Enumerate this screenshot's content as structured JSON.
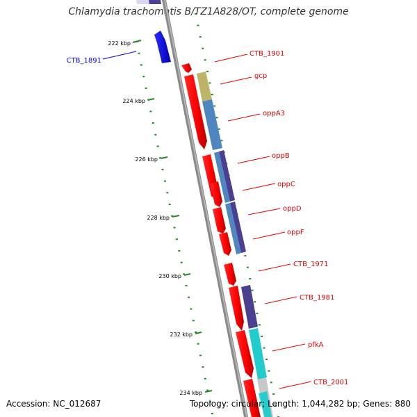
{
  "title": "Chlamydia trachomatis B/TZ1A828/OT, complete genome",
  "accession": "Accession: NC_012687",
  "summary": "Topology: circular; Length: 1,044,282 bp; Genes: 880",
  "ticks": [
    {
      "label": "222 kbp"
    },
    {
      "label": "224 kbp"
    },
    {
      "label": "226 kbp"
    },
    {
      "label": "228 kbp"
    },
    {
      "label": "230 kbp"
    },
    {
      "label": "232 kbp"
    },
    {
      "label": "234 kbp"
    }
  ],
  "genes": [
    {
      "name": "CTB_1891",
      "strand": "-",
      "color": "#0000ee"
    },
    {
      "name": "CTB_1901",
      "strand": "+",
      "color": "#dd0000"
    },
    {
      "name": "gcp",
      "strand": "+",
      "color": "#dd0000"
    },
    {
      "name": "oppA3",
      "strand": "+",
      "color": "#dd0000"
    },
    {
      "name": "oppB",
      "strand": "+",
      "color": "#dd0000"
    },
    {
      "name": "oppC",
      "strand": "+",
      "color": "#dd0000"
    },
    {
      "name": "oppD",
      "strand": "+",
      "color": "#dd0000"
    },
    {
      "name": "oppF",
      "strand": "+",
      "color": "#dd0000"
    },
    {
      "name": "CTB_1971",
      "strand": "+",
      "color": "#dd0000"
    },
    {
      "name": "CTB_1981",
      "strand": "+",
      "color": "#dd0000"
    },
    {
      "name": "pfkA",
      "strand": "+",
      "color": "#dd0000"
    },
    {
      "name": "CTB_2001",
      "strand": "+",
      "color": "#dd0000"
    }
  ],
  "colors": {
    "forward": "#ff0000",
    "reverse": "#0000ee",
    "backbone": "#888888",
    "tick": "#228b22",
    "cog_olive": "#bdb46a",
    "cog_steelblue": "#4f86c0",
    "cog_darkslate": "#4b3f8f",
    "cog_cyan": "#22cccc",
    "cog_grey": "#c8c8c8"
  }
}
